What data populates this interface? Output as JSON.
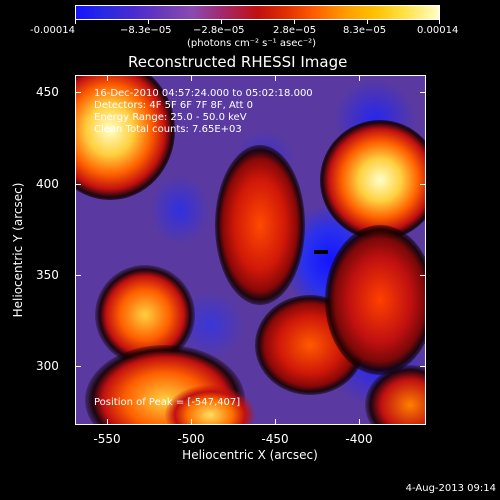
{
  "colorbar": {
    "tick_labels": [
      "-0.00014",
      "−8.3e−05",
      "−2.8e−05",
      "2.8e−05",
      "8.3e−05",
      "0.00014"
    ]
  },
  "units_label": "(photons cm⁻² s⁻¹ asec⁻²)",
  "title": "Reconstructed RHESSI Image",
  "annotation": {
    "line1": "16-Dec-2010 04:57:24.000 to 05:02:18.000",
    "line2": "Detectors: 4F 5F 6F 7F 8F, Att 0",
    "line3": "Energy Range: 25.0 - 50.0 keV",
    "line4": "Clean     Total counts: 7.65E+03",
    "peak": "Position of Peak = [-547,407]"
  },
  "x_axis": {
    "title": "Heliocentric X (arcsec)",
    "tick_labels": [
      "-550",
      "-500",
      "-450",
      "-400"
    ]
  },
  "y_axis": {
    "title": "Heliocentric Y (arcsec)",
    "tick_labels": [
      "450",
      "400",
      "350",
      "300"
    ]
  },
  "date_stamp": "4-Aug-2013 09:14",
  "colors": {
    "background": "#000000",
    "text": "#ffffff",
    "cold": "#1414ff",
    "mid": "#5a3aa0",
    "hot": "#ff3000",
    "peak": "#ffffc8"
  }
}
